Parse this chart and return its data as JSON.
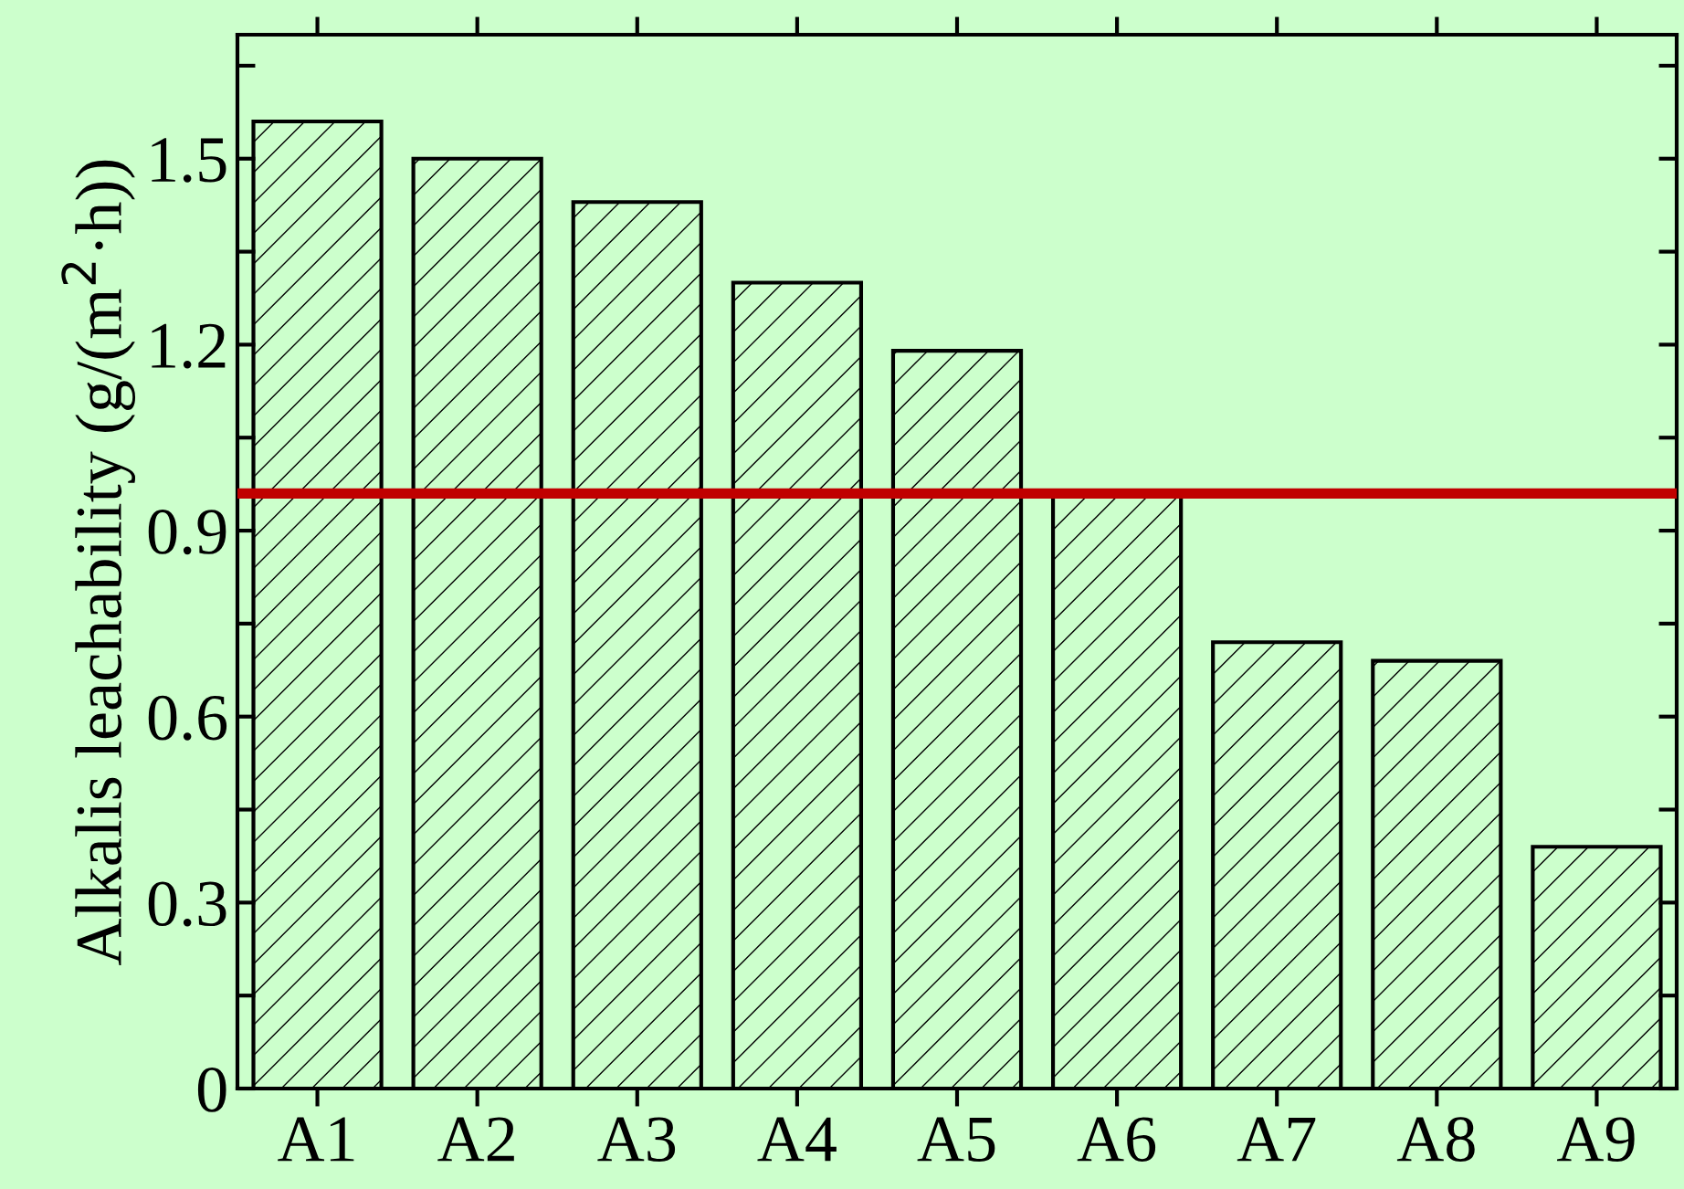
{
  "chart_data": {
    "type": "bar",
    "ylabel": "Alkalis leachability (g/(m$^{2}$·h))",
    "categories": [
      "A1",
      "A2",
      "A3",
      "A4",
      "A5",
      "A6",
      "A7",
      "A8",
      "A9"
    ],
    "values": [
      1.56,
      1.5,
      1.43,
      1.3,
      1.19,
      0.96,
      0.72,
      0.69,
      0.39
    ],
    "color": "#000000",
    "ylim": [
      0,
      1.7
    ],
    "yticks": [
      0,
      {
        "value": 0.15,
        "label": null
      },
      0.3,
      {
        "value": 0.45,
        "label": null
      },
      0.6,
      {
        "value": 0.75,
        "label": null
      },
      0.9,
      {
        "value": 1.05,
        "label": null
      },
      1.2,
      {
        "value": 1.35,
        "label": null
      },
      1.5,
      {
        "value": 1.65,
        "label": null
      }
    ],
    "ref_lines": [
      {
        "axis": "y",
        "value": 0.96,
        "color": "#c00000"
      }
    ],
    "grid": false,
    "legend": false
  }
}
